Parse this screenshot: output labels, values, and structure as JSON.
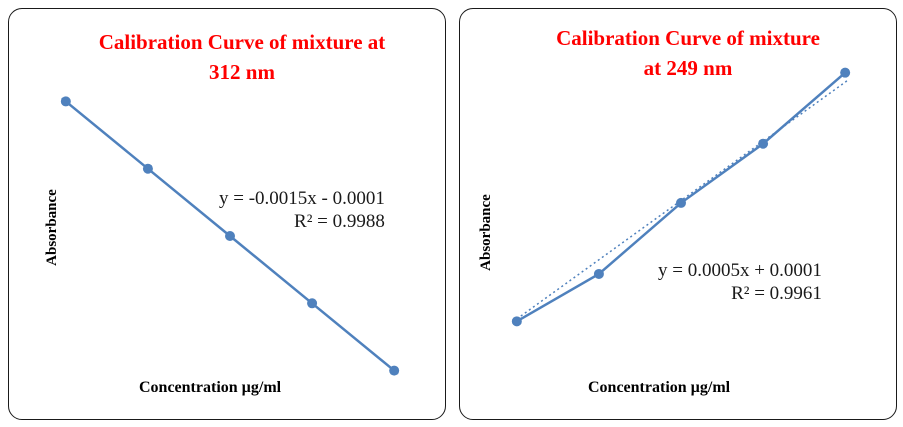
{
  "chart_data": [
    {
      "type": "line",
      "title": "Calibration Curve of mixture  at 312 nm",
      "title_lines": [
        "Calibration Curve of mixture  at",
        "312 nm"
      ],
      "xlabel": "Concentration µg/ml",
      "ylabel": "Absorbance",
      "x": [
        1,
        2,
        3,
        4,
        5
      ],
      "y": [
        -0.0016,
        -0.0031,
        -0.0046,
        -0.0061,
        -0.0076
      ],
      "trendline": {
        "type": "linear",
        "equation": "y = -0.0015x - 0.0001",
        "r2": "R² = 0.9988",
        "slope": -0.0015,
        "intercept": -0.0001
      },
      "xlim": [
        0.6,
        5.4
      ],
      "ylim": [
        -0.0081,
        -0.0011
      ],
      "grid": false,
      "legend": "none",
      "color": "#4f81bd"
    },
    {
      "type": "line",
      "title": "Calibration Curve of mixture at 249 nm",
      "title_lines": [
        "Calibration Curve of mixture",
        "at 249 nm"
      ],
      "xlabel": "Concentration µg/ml",
      "ylabel": "Absorbance",
      "x": [
        1,
        2,
        3,
        4,
        5
      ],
      "y": [
        0.00058,
        0.00098,
        0.00158,
        0.00208,
        0.00268
      ],
      "trendline": {
        "type": "linear",
        "equation": "y = 0.0005x + 0.0001",
        "r2": "R² = 0.9961",
        "slope": 0.0005,
        "intercept": 0.0001
      },
      "xlim": [
        0.6,
        5.4
      ],
      "ylim": [
        0.00038,
        0.00288
      ],
      "grid": false,
      "legend": "none",
      "color": "#4f81bd"
    }
  ]
}
